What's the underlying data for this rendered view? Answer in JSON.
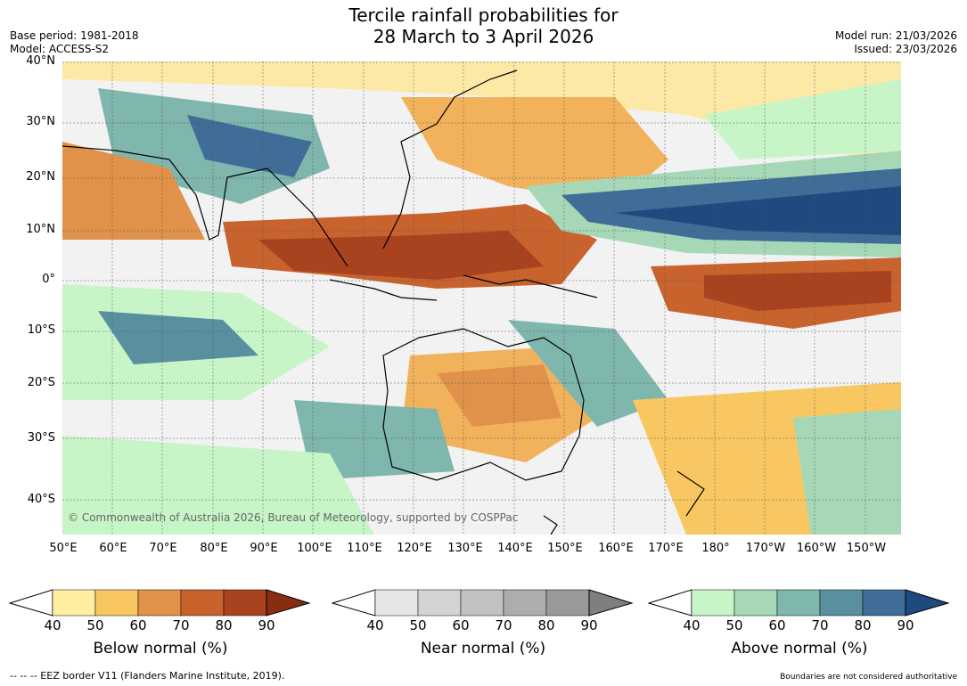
{
  "title_line1": "Tercile rainfall probabilities for",
  "title_line2": "28 March to 3 April 2026",
  "meta_left": [
    "Base period: 1981-2018",
    "Model: ACCESS-S2"
  ],
  "meta_right": [
    "Model run: 21/03/2026",
    "Issued: 23/03/2026"
  ],
  "copyright": "© Commonwealth of Australia 2026, Bureau of Meteorology, supported by COSPPac",
  "lat_labels": [
    "40°N",
    "30°N",
    "20°N",
    "10°N",
    "0°",
    "10°S",
    "20°S",
    "30°S",
    "40°S"
  ],
  "lon_labels": [
    "50°E",
    "60°E",
    "70°E",
    "80°E",
    "90°E",
    "100°E",
    "110°E",
    "120°E",
    "130°E",
    "140°E",
    "150°E",
    "160°E",
    "170°E",
    "180°",
    "170°W",
    "160°W",
    "150°W"
  ],
  "colorbars": [
    {
      "title": "Below normal (%)",
      "ticks": [
        "40",
        "50",
        "60",
        "70",
        "80",
        "90"
      ],
      "colors": [
        "#fdeea0",
        "#f9c761",
        "#e0924a",
        "#c8632e",
        "#a9421f",
        "#8a2c12"
      ]
    },
    {
      "title": "Near normal (%)",
      "ticks": [
        "40",
        "50",
        "60",
        "70",
        "80",
        "90"
      ],
      "colors": [
        "#e6e6e6",
        "#d3d3d3",
        "#c2c2c2",
        "#adadad",
        "#999999",
        "#7f7f7f"
      ]
    },
    {
      "title": "Above normal (%)",
      "ticks": [
        "40",
        "50",
        "60",
        "70",
        "80",
        "90"
      ],
      "colors": [
        "#c8f5c8",
        "#a6d8b8",
        "#7fb6ad",
        "#5a8fa0",
        "#3f6d97",
        "#1e4a7f"
      ]
    }
  ],
  "footer_left": "--  --  -- EEZ border V11 (Flanders Marine Institute, 2019).",
  "footer_right": "Boundaries are not considered authoritative"
}
